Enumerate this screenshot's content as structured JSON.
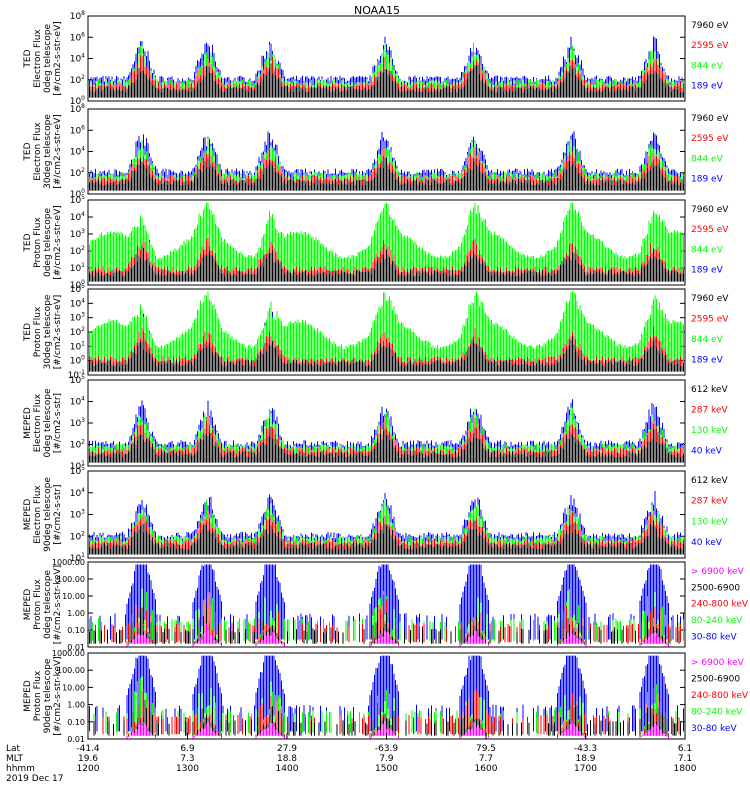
{
  "title": "NOAA15",
  "footer": {
    "row_labels": [
      "Lat",
      "MLT",
      "hhmm"
    ],
    "date": "2019 Dec 17",
    "ticks": [
      {
        "lat": "-41.4",
        "mlt": "19.6",
        "hhmm": "1200"
      },
      {
        "lat": "6.9",
        "mlt": "7.3",
        "hhmm": "1300"
      },
      {
        "lat": "27.9",
        "mlt": "18.8",
        "hhmm": "1400"
      },
      {
        "lat": "-63.9",
        "mlt": "7.9",
        "hhmm": "1500"
      },
      {
        "lat": "79.5",
        "mlt": "7.7",
        "hhmm": "1600"
      },
      {
        "lat": "-43.3",
        "mlt": "18.9",
        "hhmm": "1700"
      },
      {
        "lat": "6.1",
        "mlt": "7.1",
        "hhmm": "1800"
      }
    ]
  },
  "colors": {
    "black": "#000000",
    "red": "#ff0000",
    "green": "#00ff00",
    "blue": "#0000ff",
    "magenta": "#ff00ff"
  },
  "chart_data": [
    {
      "type": "line",
      "ylabel": [
        "TED",
        "Electron Flux",
        "0deg telescope",
        "[#/cm2-s-str-eV]"
      ],
      "ticks": [
        "10^0",
        "10^2",
        "10^4",
        "10^6",
        "10^8"
      ],
      "log": true,
      "ylim": [
        1,
        100000000
      ],
      "legend": [
        {
          "label": "7960 eV",
          "color": "#000000"
        },
        {
          "label": "2595 eV",
          "color": "#ff0000"
        },
        {
          "label": "844 eV",
          "color": "#00ff00"
        },
        {
          "label": "189 eV",
          "color": "#0000ff"
        }
      ]
    },
    {
      "type": "line",
      "ylabel": [
        "TED",
        "Electron Flux",
        "30deg telescope",
        "[#/cm2-s-str-eV]"
      ],
      "ticks": [
        "10^0",
        "10^2",
        "10^4",
        "10^6",
        "10^8"
      ],
      "log": true,
      "ylim": [
        1,
        100000000
      ],
      "legend": [
        {
          "label": "7960 eV",
          "color": "#000000"
        },
        {
          "label": "2595 eV",
          "color": "#ff0000"
        },
        {
          "label": "844 eV",
          "color": "#00ff00"
        },
        {
          "label": "189 eV",
          "color": "#0000ff"
        }
      ]
    },
    {
      "type": "line",
      "ylabel": [
        "TED",
        "Proton Flux",
        "0deg telescope",
        "[#/cm2-s-str-eV]"
      ],
      "ticks": [
        "10^0",
        "10^1",
        "10^2",
        "10^3",
        "10^4",
        "10^5"
      ],
      "log": true,
      "ylim": [
        1,
        100000
      ],
      "legend": [
        {
          "label": "7960 eV",
          "color": "#000000"
        },
        {
          "label": "2595 eV",
          "color": "#ff0000"
        },
        {
          "label": "844 eV",
          "color": "#00ff00"
        },
        {
          "label": "189 eV",
          "color": "#0000ff"
        }
      ]
    },
    {
      "type": "line",
      "ylabel": [
        "TED",
        "Proton Flux",
        "30deg telescope",
        "[#/cm2-s-str-eV]"
      ],
      "ticks": [
        "10^-1",
        "10^0",
        "10^1",
        "10^2",
        "10^3",
        "10^4",
        "10^5"
      ],
      "log": true,
      "ylim": [
        0.1,
        100000
      ],
      "legend": [
        {
          "label": "7960 eV",
          "color": "#000000"
        },
        {
          "label": "2595 eV",
          "color": "#ff0000"
        },
        {
          "label": "844 eV",
          "color": "#00ff00"
        },
        {
          "label": "189 eV",
          "color": "#0000ff"
        }
      ]
    },
    {
      "type": "line",
      "ylabel": [
        "MEPED",
        "Electron Flux",
        "0deg telescope",
        "[#/cm2-s-str]"
      ],
      "ticks": [
        "10^1",
        "10^2",
        "10^3",
        "10^4",
        "10^5"
      ],
      "log": true,
      "ylim": [
        10,
        100000
      ],
      "legend": [
        {
          "label": "612 keV",
          "color": "#000000"
        },
        {
          "label": "287 keV",
          "color": "#ff0000"
        },
        {
          "label": "130 keV",
          "color": "#00ff00"
        },
        {
          "label": "40 keV",
          "color": "#0000ff"
        }
      ]
    },
    {
      "type": "line",
      "ylabel": [
        "MEPED",
        "Electron Flux",
        "90deg telescope",
        "[#/cm2-s-str]"
      ],
      "ticks": [
        "10^1",
        "10^2",
        "10^3",
        "10^4",
        "10^5"
      ],
      "log": true,
      "ylim": [
        10,
        100000
      ],
      "legend": [
        {
          "label": "612 keV",
          "color": "#000000"
        },
        {
          "label": "287 keV",
          "color": "#ff0000"
        },
        {
          "label": "130 keV",
          "color": "#00ff00"
        },
        {
          "label": "40 keV",
          "color": "#0000ff"
        }
      ]
    },
    {
      "type": "line",
      "ylabel": [
        "MEPED",
        "Proton Flux",
        "0deg telescope",
        "[#/cm2-s-str-keV]"
      ],
      "ticks": [
        "0.01",
        "0.10",
        "1.00",
        "10.00",
        "100.00",
        "1000.00"
      ],
      "log": true,
      "ylim": [
        0.01,
        1000
      ],
      "legend": [
        {
          "label": "> 6900 keV",
          "color": "#ff00ff"
        },
        {
          "label": "2500-6900",
          "color": "#000000"
        },
        {
          "label": "240-800 keV",
          "color": "#ff0000"
        },
        {
          "label": "80-240 keV",
          "color": "#00ff00"
        },
        {
          "label": "30-80 keV",
          "color": "#0000ff"
        }
      ]
    },
    {
      "type": "line",
      "ylabel": [
        "MEPED",
        "Proton Flux",
        "90deg telescope",
        "[#/cm2-s-str-keV]"
      ],
      "ticks": [
        "0.01",
        "0.10",
        "1.00",
        "10.00",
        "100.00",
        "1000.00"
      ],
      "log": true,
      "ylim": [
        0.01,
        1000
      ],
      "legend": [
        {
          "label": "> 6900 keV",
          "color": "#ff00ff"
        },
        {
          "label": "2500-6900",
          "color": "#000000"
        },
        {
          "label": "240-800 keV",
          "color": "#ff0000"
        },
        {
          "label": "80-240 keV",
          "color": "#00ff00"
        },
        {
          "label": "30-80 keV",
          "color": "#0000ff"
        }
      ]
    }
  ]
}
